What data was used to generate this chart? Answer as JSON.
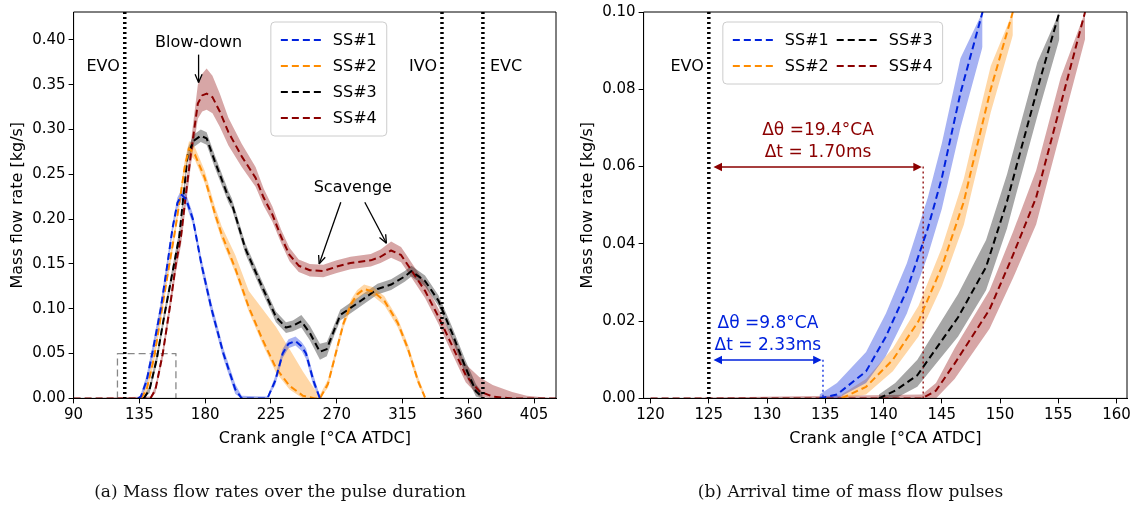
{
  "chart_data": [
    {
      "type": "line",
      "title": "(a) Mass flow rates over the pulse duration",
      "xlabel": "Crank angle [°CA ATDC]",
      "ylabel": "Mass flow rate [kg/s]",
      "xlim": [
        90,
        420
      ],
      "xticks": [
        90,
        135,
        180,
        225,
        270,
        315,
        360,
        405
      ],
      "ylim": [
        0,
        0.431
      ],
      "yticks": [
        {
          "value": 0,
          "label": "0.00"
        },
        {
          "value": 0.05,
          "label": "0.05"
        },
        {
          "value": 0.1,
          "label": "0.10"
        },
        {
          "value": 0.15,
          "label": "0.15"
        },
        {
          "value": 0.2,
          "label": "0.20"
        },
        {
          "value": 0.25,
          "label": "0.25"
        },
        {
          "value": 0.3,
          "label": "0.30"
        },
        {
          "value": 0.35,
          "label": "0.35"
        },
        {
          "value": 0.4,
          "label": "0.40"
        }
      ],
      "legend": "top",
      "line_style": "dashed",
      "series": [
        {
          "name": "SS#1",
          "color": "#0022dd",
          "x": [
            134,
            136,
            140,
            143.8,
            149.6,
            154.2,
            157.7,
            161,
            164,
            167,
            171.6,
            177.4,
            184.3,
            192.5,
            200.6,
            205,
            222.6,
            228,
            233,
            237,
            241.8,
            246,
            249,
            254,
            258.5
          ],
          "values": [
            0,
            0.002,
            0.02,
            0.05,
            0.1,
            0.15,
            0.19,
            0.218,
            0.227,
            0.222,
            0.2,
            0.15,
            0.1,
            0.05,
            0.01,
            0,
            0,
            0.02,
            0.05,
            0.061,
            0.064,
            0.058,
            0.05,
            0.02,
            0
          ],
          "lower": [
            0,
            0,
            0.014,
            0.043,
            0.093,
            0.143,
            0.184,
            0.212,
            0.221,
            0.216,
            0.194,
            0.143,
            0.094,
            0.044,
            0.005,
            0,
            0,
            0.015,
            0.045,
            0.056,
            0.059,
            0.053,
            0.044,
            0.014,
            0
          ],
          "upper": [
            0,
            0.005,
            0.026,
            0.057,
            0.107,
            0.157,
            0.196,
            0.224,
            0.233,
            0.228,
            0.206,
            0.157,
            0.107,
            0.056,
            0.016,
            0.003,
            0.002,
            0.025,
            0.055,
            0.066,
            0.069,
            0.063,
            0.056,
            0.026,
            0.003
          ]
        },
        {
          "name": "SS#2",
          "color": "#ff8c00",
          "x": [
            136.1,
            140,
            145,
            149.6,
            154,
            158.8,
            163,
            166,
            169,
            173,
            179.7,
            186.7,
            191.3,
            200.6,
            209.8,
            219.1,
            228.4,
            237.7,
            246.9,
            255,
            258.5,
            264,
            270.1,
            274.7,
            280,
            284,
            288.7,
            295,
            302.6,
            311.8,
            318.8,
            325.7,
            330.4
          ],
          "values": [
            0,
            0.01,
            0.045,
            0.091,
            0.135,
            0.181,
            0.225,
            0.258,
            0.279,
            0.272,
            0.246,
            0.206,
            0.183,
            0.145,
            0.102,
            0.066,
            0.034,
            0.014,
            0.003,
            0,
            0,
            0.016,
            0.055,
            0.084,
            0.106,
            0.116,
            0.122,
            0.119,
            0.109,
            0.084,
            0.055,
            0.019,
            0.001
          ],
          "lower": [
            0,
            0.006,
            0.039,
            0.085,
            0.129,
            0.175,
            0.219,
            0.251,
            0.272,
            0.266,
            0.24,
            0.2,
            0.177,
            0.14,
            0.097,
            0.061,
            0.029,
            0.01,
            0,
            0,
            0,
            0.012,
            0.05,
            0.079,
            0.101,
            0.111,
            0.117,
            0.114,
            0.104,
            0.079,
            0.05,
            0.015,
            0
          ],
          "upper": [
            0.002,
            0.015,
            0.051,
            0.097,
            0.141,
            0.187,
            0.231,
            0.265,
            0.287,
            0.28,
            0.254,
            0.214,
            0.192,
            0.16,
            0.12,
            0.1,
            0.08,
            0.055,
            0.03,
            0.01,
            0.004,
            0.021,
            0.06,
            0.089,
            0.111,
            0.121,
            0.127,
            0.124,
            0.114,
            0.089,
            0.06,
            0.024,
            0.004
          ]
        },
        {
          "name": "SS#3",
          "color": "#000000",
          "x": [
            138,
            142,
            147,
            151.9,
            157,
            162.3,
            168.1,
            172,
            177,
            181,
            186.7,
            196,
            198.3,
            207.5,
            219.1,
            228.4,
            235.3,
            240,
            245.8,
            251.6,
            258.5,
            263.2,
            268,
            272.4,
            284,
            297.9,
            307.2,
            316.5,
            321.1,
            330.4,
            339.6,
            348.9,
            358.2,
            365.2,
            369.8
          ],
          "values": [
            0,
            0.01,
            0.045,
            0.091,
            0.135,
            0.181,
            0.272,
            0.287,
            0.293,
            0.29,
            0.264,
            0.224,
            0.217,
            0.167,
            0.124,
            0.091,
            0.079,
            0.081,
            0.086,
            0.073,
            0.052,
            0.055,
            0.075,
            0.093,
            0.106,
            0.122,
            0.127,
            0.136,
            0.142,
            0.131,
            0.109,
            0.073,
            0.034,
            0.008,
            0.001
          ],
          "lower": [
            0,
            0.006,
            0.039,
            0.085,
            0.129,
            0.175,
            0.265,
            0.28,
            0.286,
            0.283,
            0.257,
            0.218,
            0.211,
            0.161,
            0.118,
            0.085,
            0.073,
            0.075,
            0.079,
            0.065,
            0.043,
            0.047,
            0.069,
            0.087,
            0.1,
            0.116,
            0.121,
            0.13,
            0.136,
            0.125,
            0.103,
            0.066,
            0.026,
            0.002,
            0
          ],
          "upper": [
            0.002,
            0.014,
            0.051,
            0.097,
            0.141,
            0.187,
            0.279,
            0.294,
            0.3,
            0.297,
            0.271,
            0.231,
            0.223,
            0.173,
            0.13,
            0.097,
            0.085,
            0.087,
            0.093,
            0.081,
            0.061,
            0.063,
            0.081,
            0.099,
            0.112,
            0.128,
            0.133,
            0.142,
            0.148,
            0.137,
            0.115,
            0.08,
            0.042,
            0.016,
            0.006
          ]
        },
        {
          "name": "SS#4",
          "color": "#8b0000",
          "x": [
            90,
            142.6,
            146,
            151,
            156.5,
            160,
            163.5,
            167,
            170.4,
            175,
            178,
            181,
            185,
            190,
            195.9,
            205,
            214.5,
            220,
            226,
            232,
            237.7,
            244,
            251.6,
            260.8,
            270,
            279.4,
            293.3,
            300,
            307.2,
            314,
            321,
            330.4,
            339.6,
            348.9,
            358.2,
            367.5,
            376.7,
            390,
            400,
            420
          ],
          "values": [
            0,
            0,
            0.01,
            0.05,
            0.109,
            0.15,
            0.181,
            0.23,
            0.275,
            0.329,
            0.338,
            0.34,
            0.336,
            0.32,
            0.297,
            0.27,
            0.246,
            0.224,
            0.205,
            0.18,
            0.16,
            0.148,
            0.143,
            0.142,
            0.147,
            0.151,
            0.154,
            0.158,
            0.165,
            0.16,
            0.143,
            0.12,
            0.091,
            0.059,
            0.026,
            0.008,
            0.002,
            0,
            0,
            0
          ],
          "lower": [
            0,
            0,
            0.006,
            0.044,
            0.101,
            0.141,
            0.171,
            0.218,
            0.262,
            0.312,
            0.32,
            0.322,
            0.318,
            0.303,
            0.282,
            0.258,
            0.236,
            0.215,
            0.197,
            0.173,
            0.153,
            0.141,
            0.136,
            0.135,
            0.14,
            0.144,
            0.147,
            0.151,
            0.157,
            0.152,
            0.135,
            0.112,
            0.083,
            0.05,
            0.018,
            0.002,
            0,
            0,
            0,
            0
          ],
          "upper": [
            0,
            0.002,
            0.014,
            0.056,
            0.117,
            0.159,
            0.191,
            0.242,
            0.288,
            0.35,
            0.362,
            0.368,
            0.36,
            0.34,
            0.313,
            0.284,
            0.258,
            0.234,
            0.214,
            0.188,
            0.168,
            0.155,
            0.15,
            0.149,
            0.154,
            0.158,
            0.161,
            0.166,
            0.175,
            0.169,
            0.152,
            0.129,
            0.1,
            0.069,
            0.038,
            0.024,
            0.015,
            0.007,
            0.003,
            0
          ]
        },
        {
          "color": "#888888",
          "line_style": "dashed",
          "x": [
            120,
            120,
            160,
            160
          ],
          "values": [
            0,
            0.05,
            0.05,
            0
          ]
        }
      ],
      "ref_lines": [
        {
          "axis": "x",
          "value": 125,
          "label": "EVO",
          "color": "#000000",
          "line_style": "dotted"
        },
        {
          "axis": "x",
          "value": 342,
          "label": "IVO",
          "color": "#000000",
          "line_style": "dotted"
        },
        {
          "axis": "x",
          "value": 370,
          "label": "EVC",
          "color": "#000000",
          "line_style": "dotted"
        }
      ],
      "annotations": [
        {
          "text": "Blow-down",
          "x": 175.5,
          "y": 0.35
        },
        {
          "text": "Scavenge",
          "x": 258,
          "y": 0.15
        }
      ]
    },
    {
      "type": "line",
      "title": "(b) Arrival time of mass flow pulses",
      "xlabel": "Crank angle [°CA ATDC]",
      "ylabel": "Mass flow rate [kg/s]",
      "xlim": [
        119.4,
        160.9
      ],
      "xticks": [
        120,
        125,
        130,
        135,
        140,
        145,
        150,
        155,
        160
      ],
      "ylim": [
        0,
        0.1
      ],
      "yticks": [
        {
          "value": 0,
          "label": "0.00"
        },
        {
          "value": 0.02,
          "label": "0.02"
        },
        {
          "value": 0.04,
          "label": "0.04"
        },
        {
          "value": 0.06,
          "label": "0.06"
        },
        {
          "value": 0.08,
          "label": "0.08"
        },
        {
          "value": 0.1,
          "label": "0.10"
        }
      ],
      "legend": "top left",
      "line_style": "dashed",
      "series": [
        {
          "name": "SS#1",
          "color": "#0022dd",
          "x": [
            134.5,
            136,
            138.5,
            140.2,
            142,
            143.8,
            145,
            146.6,
            148.5
          ],
          "values": [
            0,
            0.001,
            0.007,
            0.016,
            0.028,
            0.044,
            0.057,
            0.079,
            0.1
          ],
          "lower": [
            0,
            0,
            0.004,
            0.011,
            0.022,
            0.037,
            0.049,
            0.07,
            0.091
          ],
          "upper": [
            0.001,
            0.004,
            0.012,
            0.022,
            0.035,
            0.052,
            0.066,
            0.088,
            0.1
          ]
        },
        {
          "name": "SS#2",
          "color": "#ff8c00",
          "x": [
            136.4,
            138.5,
            140.8,
            143,
            145,
            146.9,
            147.6,
            149.2,
            151.1
          ],
          "values": [
            0,
            0.003,
            0.01,
            0.02,
            0.034,
            0.051,
            0.06,
            0.08,
            0.1
          ],
          "lower": [
            0,
            0.001,
            0.007,
            0.016,
            0.029,
            0.045,
            0.054,
            0.074,
            0.094
          ],
          "upper": [
            0.001,
            0.005,
            0.013,
            0.024,
            0.039,
            0.057,
            0.066,
            0.086,
            0.1
          ]
        },
        {
          "name": "SS#3",
          "color": "#000000",
          "x": [
            139.6,
            141,
            142.9,
            146.4,
            148.8,
            150.6,
            151.4,
            153.2,
            155.1
          ],
          "values": [
            0,
            0.002,
            0.006,
            0.021,
            0.034,
            0.051,
            0.06,
            0.08,
            0.1
          ],
          "lower": [
            0,
            0,
            0.003,
            0.016,
            0.028,
            0.044,
            0.053,
            0.073,
            0.093
          ],
          "upper": [
            0.001,
            0.004,
            0.01,
            0.027,
            0.041,
            0.058,
            0.067,
            0.087,
            0.1
          ]
        },
        {
          "name": "SS#4",
          "color": "#8b0000",
          "x": [
            120,
            143.3,
            144.5,
            146.1,
            149.1,
            151.1,
            153.1,
            155.2,
            157.3
          ],
          "values": [
            0,
            0,
            0.002,
            0.009,
            0.023,
            0.037,
            0.052,
            0.076,
            0.1
          ],
          "lower": [
            0,
            0,
            0,
            0.005,
            0.018,
            0.031,
            0.045,
            0.069,
            0.093
          ],
          "upper": [
            0,
            0.001,
            0.004,
            0.013,
            0.028,
            0.043,
            0.059,
            0.083,
            0.1
          ]
        },
        {
          "color": "#8b0000",
          "line_style": "dotted",
          "x": [
            143.4,
            143.4
          ],
          "values": [
            0.06,
            0
          ]
        },
        {
          "color": "#0022dd",
          "line_style": "dotted",
          "x": [
            134.8,
            134.8
          ],
          "values": [
            0.01,
            0
          ]
        }
      ],
      "ref_lines": [
        {
          "axis": "x",
          "value": 125,
          "label": "EVO",
          "color": "#000000",
          "line_style": "dotted"
        }
      ],
      "annotations": [
        {
          "text": "Δθ =19.4°CA\nΔt = 1.70ms",
          "x": 143.4,
          "y": 0.06
        },
        {
          "text": "Δθ =9.8°CA\nΔt = 2.33ms",
          "x": 134.8,
          "y": 0.01
        }
      ]
    }
  ]
}
